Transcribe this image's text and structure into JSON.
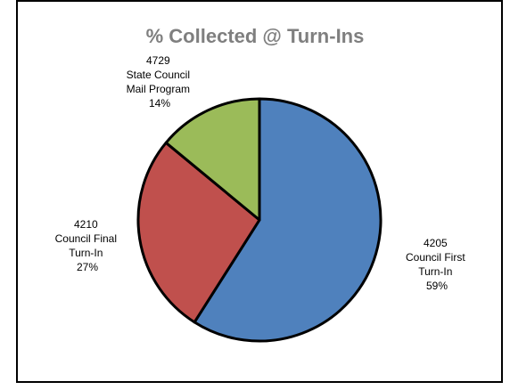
{
  "chart_data": {
    "type": "pie",
    "title": "% Collected @ Turn-Ins",
    "slices": [
      {
        "code": "4205",
        "label_lines": [
          "Council First",
          "Turn-In"
        ],
        "percent_label": "59%",
        "value": 59,
        "color": "#4f81bd"
      },
      {
        "code": "4210",
        "label_lines": [
          "Council Final",
          "Turn-In"
        ],
        "percent_label": "27%",
        "value": 27,
        "color": "#c0504d"
      },
      {
        "code": "4729",
        "label_lines": [
          "State Council",
          "Mail Program"
        ],
        "percent_label": "14%",
        "value": 14,
        "color": "#9bbb59"
      }
    ],
    "start": "12 o'clock",
    "direction": "clockwise",
    "outline_color": "#000000"
  }
}
